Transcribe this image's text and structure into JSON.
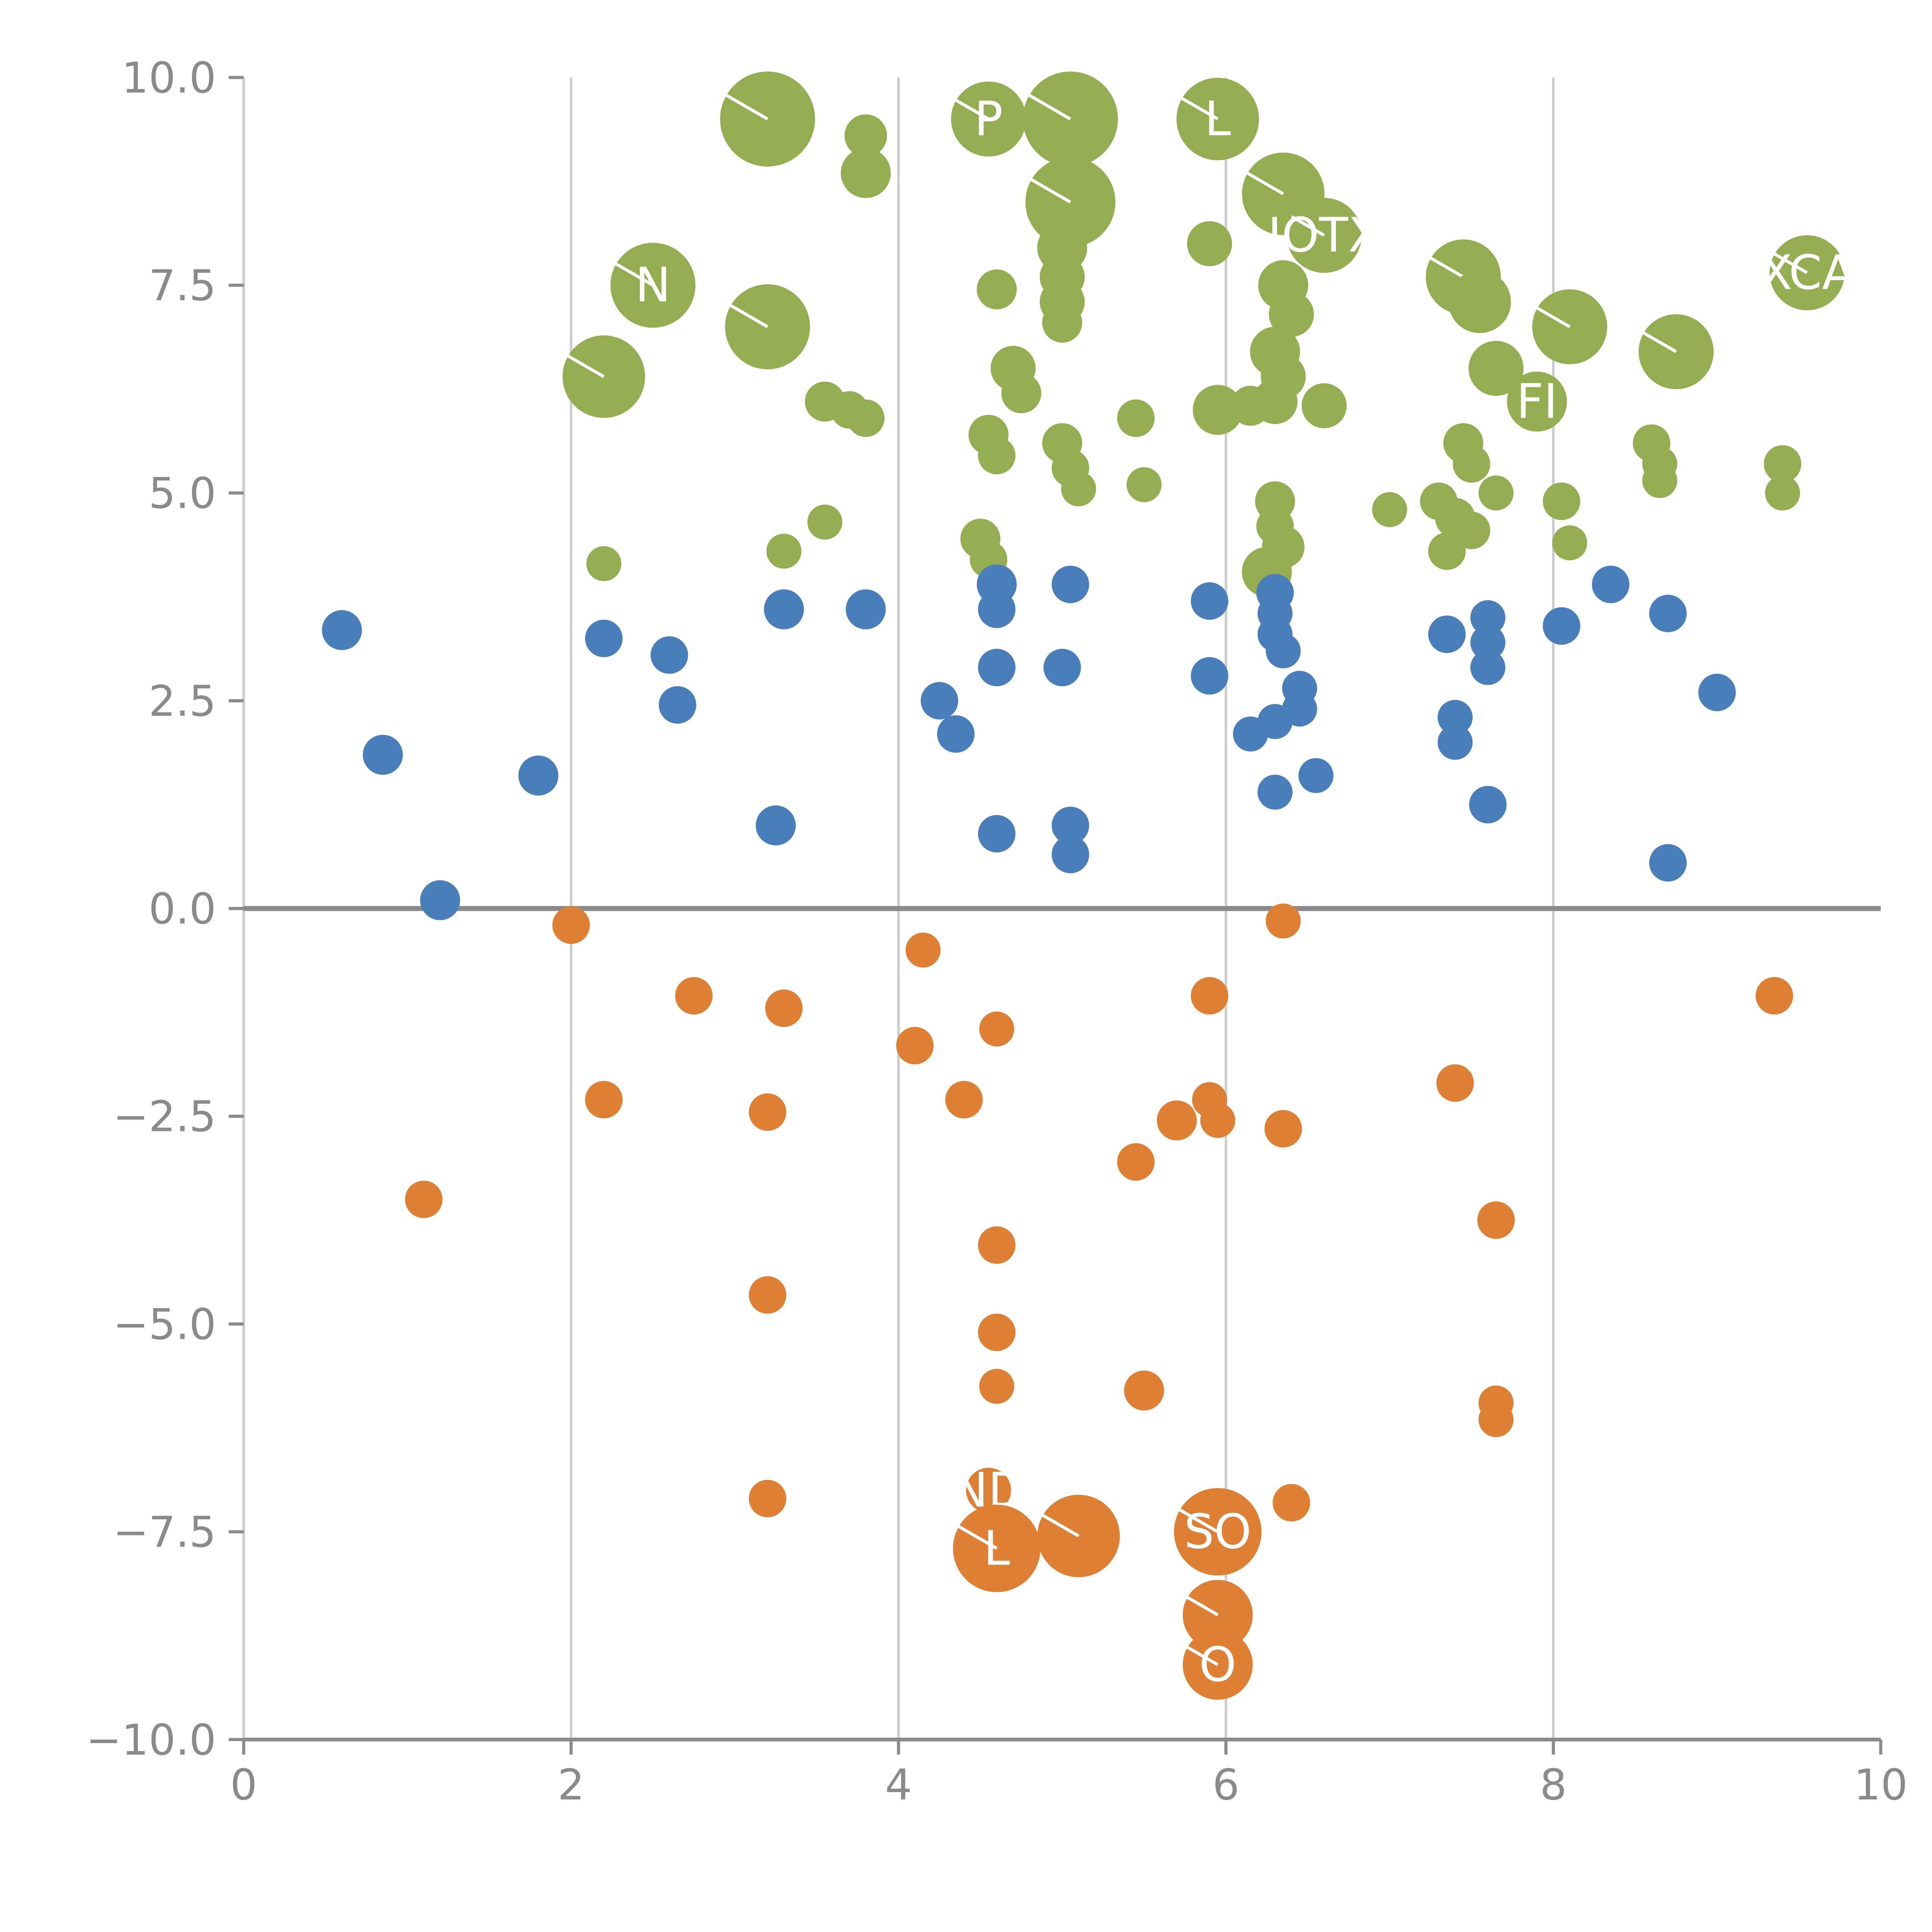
{
  "figure": {
    "background": "#ffffff"
  },
  "chart_data": {
    "type": "scatter",
    "title": "",
    "xlabel": "",
    "ylabel": "",
    "xlim": [
      0,
      10
    ],
    "ylim": [
      -10,
      10
    ],
    "x_ticks": [
      0,
      2,
      4,
      6,
      8,
      10
    ],
    "x_tick_labels": [
      "0",
      "2",
      "4",
      "6",
      "8",
      "10"
    ],
    "y_ticks": [
      10,
      7.5,
      5,
      2.5,
      0,
      -2.5,
      -5,
      -7.5,
      -10
    ],
    "y_tick_labels": [
      "10.0",
      "7.5",
      "5.0",
      "2.5",
      "0.0",
      "−2.5",
      "−5.0",
      "−7.5",
      "−10.0"
    ],
    "grid_x": [
      2,
      4,
      6,
      8
    ],
    "grid_color": "#cccccc",
    "zero_line": true,
    "zero_line_color": "#8a8a8a",
    "axis_color": "#8a8a8a",
    "tick_label_color": "#8a8a8a",
    "legend": "none",
    "bubble_label_color": "#ffffff",
    "series": [
      {
        "name": "green",
        "color": "#94ad52",
        "points": [
          [
            3.2,
            9.5,
            38
          ],
          [
            3.8,
            9.3,
            17
          ],
          [
            3.8,
            8.85,
            20
          ],
          [
            4.55,
            9.5,
            30,
            "P"
          ],
          [
            5.05,
            9.5,
            38
          ],
          [
            5.95,
            9.5,
            33,
            "L"
          ],
          [
            5.05,
            8.5,
            36
          ],
          [
            5.0,
            7.95,
            20
          ],
          [
            5.0,
            7.6,
            18
          ],
          [
            5.0,
            7.3,
            18
          ],
          [
            5.0,
            7.05,
            16
          ],
          [
            5.9,
            8.0,
            18
          ],
          [
            6.35,
            8.6,
            33
          ],
          [
            6.6,
            8.1,
            30,
            "IOTX"
          ],
          [
            2.5,
            7.5,
            34,
            "N"
          ],
          [
            3.2,
            7.0,
            34
          ],
          [
            2.2,
            6.4,
            33
          ],
          [
            4.6,
            7.45,
            16
          ],
          [
            6.35,
            7.5,
            20
          ],
          [
            6.4,
            7.15,
            18
          ],
          [
            7.45,
            7.6,
            30
          ],
          [
            7.55,
            7.3,
            25
          ],
          [
            8.1,
            7.0,
            30
          ],
          [
            8.75,
            6.7,
            30
          ],
          [
            9.55,
            7.65,
            30,
            "XCA"
          ],
          [
            7.65,
            6.5,
            22
          ],
          [
            6.3,
            6.7,
            20
          ],
          [
            6.35,
            6.4,
            18
          ],
          [
            6.3,
            6.1,
            18
          ],
          [
            5.95,
            6.0,
            20
          ],
          [
            6.15,
            6.05,
            16
          ],
          [
            6.6,
            6.05,
            18
          ],
          [
            7.9,
            6.1,
            24,
            "FI"
          ],
          [
            4.7,
            6.5,
            18
          ],
          [
            4.75,
            6.2,
            16
          ],
          [
            3.55,
            6.1,
            16
          ],
          [
            3.7,
            6.0,
            15
          ],
          [
            3.8,
            5.9,
            15
          ],
          [
            4.55,
            5.7,
            16
          ],
          [
            4.6,
            5.45,
            15
          ],
          [
            5.0,
            5.6,
            16
          ],
          [
            5.05,
            5.3,
            15
          ],
          [
            5.1,
            5.05,
            14
          ],
          [
            5.45,
            5.9,
            15
          ],
          [
            5.5,
            5.1,
            14
          ],
          [
            7.45,
            5.6,
            16
          ],
          [
            7.5,
            5.35,
            15
          ],
          [
            8.6,
            5.6,
            15
          ],
          [
            8.65,
            5.35,
            14
          ],
          [
            8.65,
            5.15,
            14
          ],
          [
            9.4,
            5.35,
            15
          ],
          [
            9.4,
            5.0,
            14
          ],
          [
            7.3,
            4.9,
            15
          ],
          [
            7.4,
            4.7,
            16
          ],
          [
            7.5,
            4.55,
            15
          ],
          [
            7.65,
            5.0,
            14
          ],
          [
            8.05,
            4.9,
            15
          ],
          [
            7.0,
            4.8,
            14
          ],
          [
            6.3,
            4.9,
            16
          ],
          [
            6.3,
            4.6,
            15
          ],
          [
            6.35,
            4.35,
            17
          ],
          [
            3.3,
            4.3,
            14
          ],
          [
            3.55,
            4.65,
            14
          ],
          [
            2.2,
            4.15,
            14
          ],
          [
            4.5,
            4.45,
            16
          ],
          [
            4.55,
            4.2,
            15
          ],
          [
            6.25,
            4.05,
            20
          ],
          [
            7.35,
            4.3,
            15
          ],
          [
            8.1,
            4.4,
            14
          ]
        ]
      },
      {
        "name": "blue",
        "color": "#4a7ebb",
        "points": [
          [
            0.6,
            3.35,
            16
          ],
          [
            0.85,
            1.85,
            16
          ],
          [
            1.2,
            0.1,
            16
          ],
          [
            1.8,
            1.6,
            16
          ],
          [
            2.2,
            3.25,
            15
          ],
          [
            2.6,
            3.05,
            15
          ],
          [
            2.65,
            2.45,
            15
          ],
          [
            3.3,
            3.6,
            16
          ],
          [
            3.25,
            1.0,
            16
          ],
          [
            3.8,
            3.6,
            16
          ],
          [
            4.25,
            2.5,
            15
          ],
          [
            4.35,
            2.1,
            15
          ],
          [
            4.6,
            3.9,
            16
          ],
          [
            4.6,
            3.6,
            15
          ],
          [
            4.6,
            2.9,
            15
          ],
          [
            4.6,
            0.9,
            15
          ],
          [
            5.05,
            3.9,
            15
          ],
          [
            5.0,
            2.9,
            15
          ],
          [
            5.05,
            1.0,
            15
          ],
          [
            5.05,
            0.65,
            15
          ],
          [
            5.9,
            3.7,
            15
          ],
          [
            5.9,
            2.8,
            15
          ],
          [
            6.15,
            2.1,
            14
          ],
          [
            6.3,
            2.25,
            14
          ],
          [
            6.45,
            2.4,
            14
          ],
          [
            6.3,
            3.8,
            15
          ],
          [
            6.3,
            3.55,
            14
          ],
          [
            6.3,
            3.3,
            14
          ],
          [
            6.35,
            3.1,
            14
          ],
          [
            6.45,
            2.65,
            14
          ],
          [
            6.3,
            1.4,
            14
          ],
          [
            6.55,
            1.6,
            14
          ],
          [
            7.4,
            2.3,
            14
          ],
          [
            7.4,
            2.0,
            14
          ],
          [
            7.35,
            3.3,
            15
          ],
          [
            7.6,
            3.5,
            14
          ],
          [
            7.6,
            3.2,
            14
          ],
          [
            7.6,
            2.9,
            14
          ],
          [
            7.6,
            1.25,
            15
          ],
          [
            8.05,
            3.4,
            15
          ],
          [
            8.35,
            3.9,
            15
          ],
          [
            8.7,
            3.55,
            15
          ],
          [
            8.7,
            0.55,
            15
          ],
          [
            9.0,
            2.6,
            15
          ]
        ]
      },
      {
        "name": "orange",
        "color": "#dd8036",
        "points": [
          [
            2.0,
            -0.2,
            15
          ],
          [
            1.1,
            -3.5,
            15
          ],
          [
            2.2,
            -2.3,
            15
          ],
          [
            2.75,
            -1.05,
            15
          ],
          [
            3.2,
            -2.45,
            15
          ],
          [
            3.3,
            -1.2,
            15
          ],
          [
            3.2,
            -4.65,
            15
          ],
          [
            3.2,
            -7.1,
            15
          ],
          [
            4.15,
            -0.5,
            14
          ],
          [
            4.1,
            -1.65,
            15
          ],
          [
            4.4,
            -2.3,
            15
          ],
          [
            4.6,
            -1.45,
            14
          ],
          [
            4.6,
            -4.05,
            15
          ],
          [
            4.6,
            -5.1,
            15
          ],
          [
            4.6,
            -5.75,
            14
          ],
          [
            4.55,
            -7.0,
            18,
            "ND"
          ],
          [
            4.6,
            -7.7,
            35,
            "L"
          ],
          [
            5.1,
            -7.55,
            33
          ],
          [
            5.45,
            -3.05,
            15
          ],
          [
            5.5,
            -5.8,
            16
          ],
          [
            5.7,
            -2.55,
            16
          ],
          [
            5.9,
            -2.3,
            14
          ],
          [
            5.95,
            -2.55,
            14
          ],
          [
            5.9,
            -1.05,
            15
          ],
          [
            5.95,
            -7.5,
            35,
            "SO"
          ],
          [
            5.95,
            -8.5,
            28
          ],
          [
            5.95,
            -9.1,
            28,
            "O"
          ],
          [
            6.35,
            -0.15,
            14
          ],
          [
            6.35,
            -2.65,
            15
          ],
          [
            6.4,
            -7.15,
            15
          ],
          [
            7.4,
            -2.1,
            15
          ],
          [
            7.65,
            -3.75,
            15
          ],
          [
            7.65,
            -5.95,
            14
          ],
          [
            7.65,
            -6.15,
            14
          ],
          [
            9.35,
            -1.05,
            15
          ]
        ]
      }
    ]
  }
}
